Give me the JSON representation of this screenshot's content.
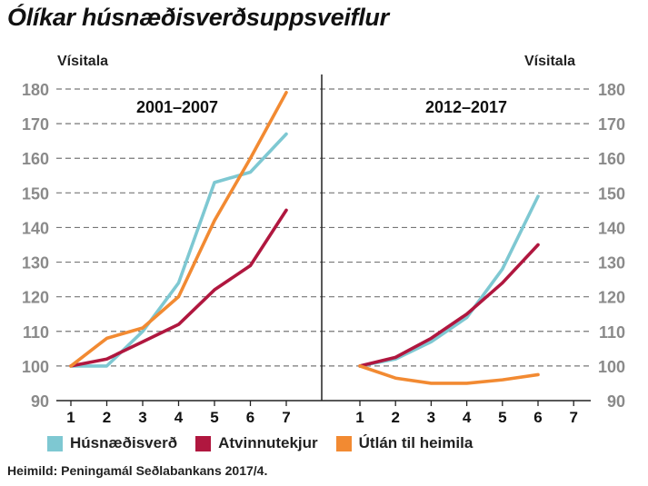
{
  "title": "Ólíkar húsnæðisverðsuppsveiflur",
  "source": "Heimild: Peningamál Seðlabankans 2017/4.",
  "chart_data": {
    "type": "line",
    "ylabel_left": "Vísitala",
    "ylabel_right": "Vísitala",
    "ylim": [
      90,
      180
    ],
    "yticks": [
      90,
      100,
      110,
      120,
      130,
      140,
      150,
      160,
      170,
      180
    ],
    "grid": "horizontal dashed",
    "legend_position": "bottom",
    "colors": {
      "Húsnæðisverð": "#7ec8d2",
      "Atvinnutekjur": "#b0173f",
      "Útlán til heimila": "#f28a32"
    },
    "panels": [
      {
        "label": "2001–2007",
        "x": [
          1,
          2,
          3,
          4,
          5,
          6,
          7
        ],
        "series": [
          {
            "name": "Húsnæðisverð",
            "values": [
              100,
              100,
              110,
              124,
              153,
              156,
              167
            ]
          },
          {
            "name": "Atvinnutekjur",
            "values": [
              100,
              102,
              107,
              112,
              122,
              129,
              145
            ]
          },
          {
            "name": "Útlán til heimila",
            "values": [
              100,
              108,
              111,
              120,
              142,
              160,
              179
            ]
          }
        ]
      },
      {
        "label": "2012–2017",
        "x": [
          1,
          2,
          3,
          4,
          5,
          6,
          7
        ],
        "series": [
          {
            "name": "Húsnæðisverð",
            "values": [
              100,
              102,
              107,
              114,
              128,
              149,
              null
            ]
          },
          {
            "name": "Atvinnutekjur",
            "values": [
              100,
              102.5,
              108,
              115,
              124,
              135,
              null
            ]
          },
          {
            "name": "Útlán til heimila",
            "values": [
              100,
              96.5,
              95,
              95,
              96,
              97.5,
              null
            ]
          }
        ]
      }
    ]
  }
}
